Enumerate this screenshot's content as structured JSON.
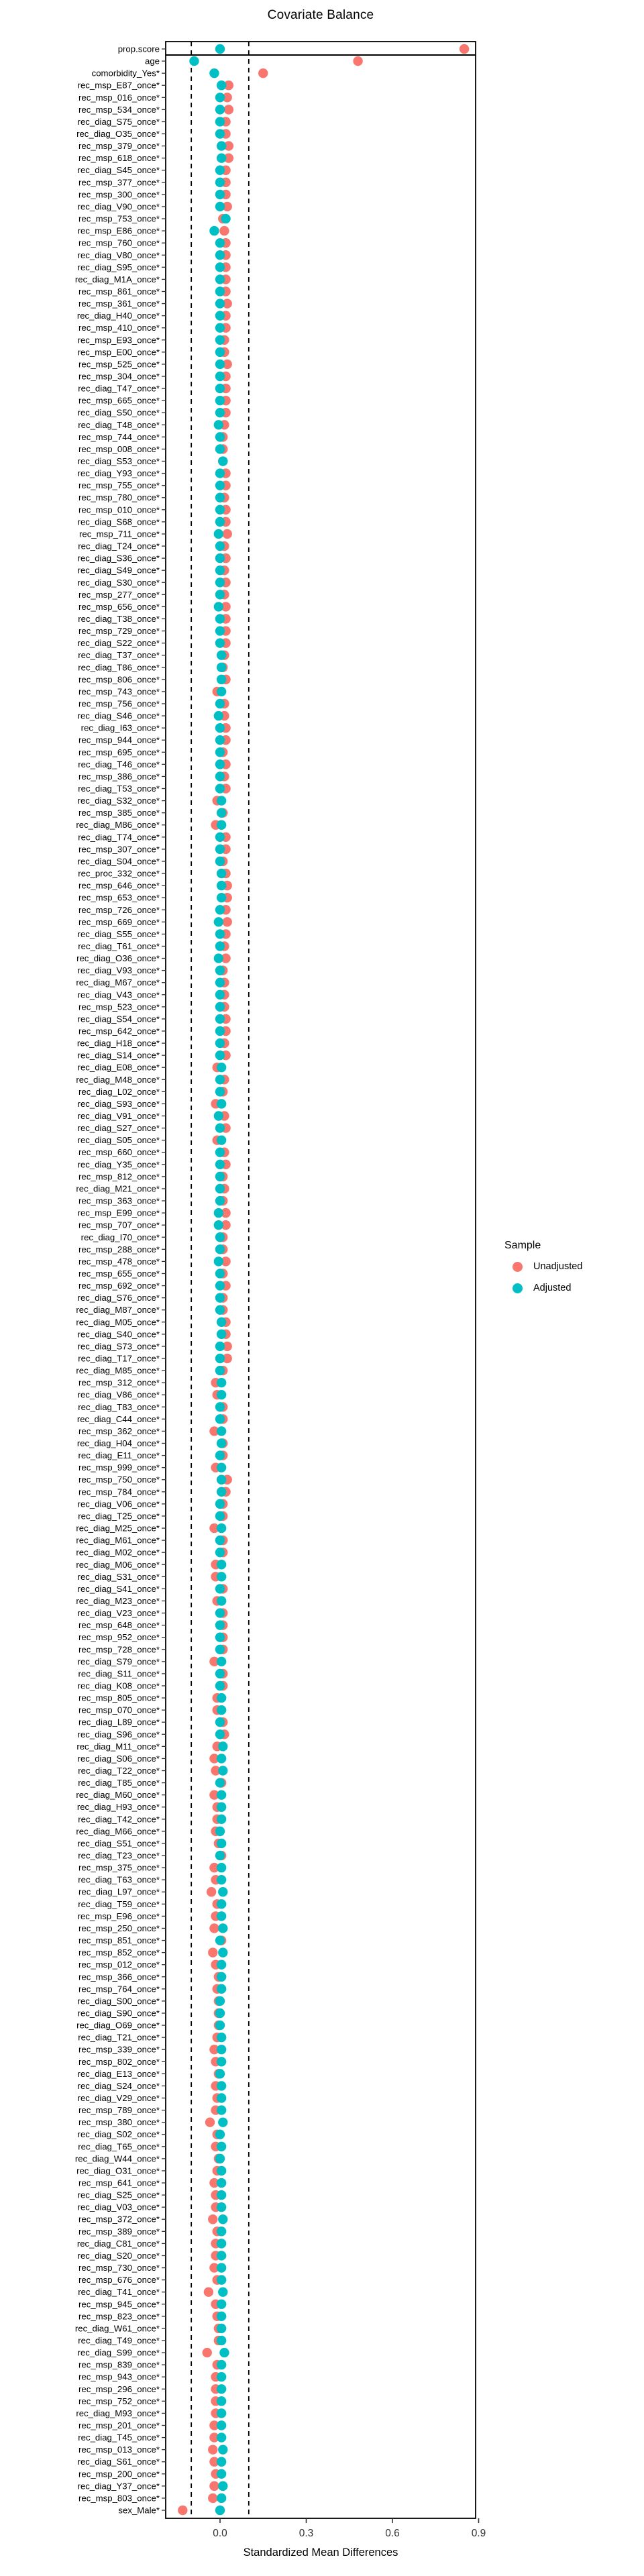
{
  "chart_data": {
    "type": "scatter",
    "title": "Covariate Balance",
    "xlabel": "Standardized Mean Differences",
    "x_axis": {
      "min": -0.19,
      "max": 0.9,
      "ticks": [
        0.0,
        0.3,
        0.6,
        0.9
      ],
      "tick_labels": [
        "0.0",
        "0.3",
        "0.6",
        "0.9"
      ]
    },
    "threshold_lines": [
      -0.1,
      0.1
    ],
    "separator_after_row": "prop.score",
    "grid": false,
    "legend": {
      "title": "Sample",
      "position": "right-middle",
      "items": [
        {
          "label": "Unadjusted",
          "color": "#F8766D"
        },
        {
          "label": "Adjusted",
          "color": "#00BFC4"
        }
      ]
    },
    "colors": {
      "unadjusted": "#F8766D",
      "adjusted": "#00BFC4"
    },
    "series_order_note": "rows listed top to bottom; values are [label, unadjusted SMD, adjusted SMD]",
    "rows": [
      [
        "prop.score",
        0.85,
        0.0
      ],
      [
        "age",
        0.48,
        -0.09
      ],
      [
        "comorbidity_Yes*",
        0.15,
        -0.02
      ],
      [
        "rec_msp_E87_once*",
        0.03,
        0.005
      ],
      [
        "rec_msp_016_once*",
        0.025,
        0.0
      ],
      [
        "rec_msp_534_once*",
        0.03,
        0.0
      ],
      [
        "rec_diag_S75_once*",
        0.02,
        0.0
      ],
      [
        "rec_diag_O35_once*",
        0.02,
        0.0
      ],
      [
        "rec_msp_379_once*",
        0.03,
        0.005
      ],
      [
        "rec_msp_618_once*",
        0.03,
        0.005
      ],
      [
        "rec_diag_S45_once*",
        0.02,
        0.0
      ],
      [
        "rec_msp_377_once*",
        0.02,
        0.0
      ],
      [
        "rec_msp_300_once*",
        0.02,
        0.0
      ],
      [
        "rec_diag_V90_once*",
        0.025,
        0.0
      ],
      [
        "rec_msp_753_once*",
        0.01,
        0.02
      ],
      [
        "rec_msp_E86_once*",
        0.015,
        -0.02
      ],
      [
        "rec_msp_760_once*",
        0.02,
        0.0
      ],
      [
        "rec_diag_V80_once*",
        0.02,
        0.0
      ],
      [
        "rec_diag_S95_once*",
        0.02,
        0.0
      ],
      [
        "rec_diag_M1A_once*",
        0.02,
        0.0
      ],
      [
        "rec_msp_861_once*",
        0.02,
        0.0
      ],
      [
        "rec_msp_361_once*",
        0.025,
        0.0
      ],
      [
        "rec_diag_H40_once*",
        0.02,
        0.0
      ],
      [
        "rec_msp_410_once*",
        0.02,
        0.0
      ],
      [
        "rec_msp_E93_once*",
        0.015,
        0.0
      ],
      [
        "rec_msp_E00_once*",
        0.015,
        0.0
      ],
      [
        "rec_msp_525_once*",
        0.025,
        0.0
      ],
      [
        "rec_msp_304_once*",
        0.02,
        0.0
      ],
      [
        "rec_diag_T47_once*",
        0.02,
        0.0
      ],
      [
        "rec_msp_665_once*",
        0.02,
        0.0
      ],
      [
        "rec_diag_S50_once*",
        0.02,
        0.0
      ],
      [
        "rec_diag_T48_once*",
        0.015,
        -0.005
      ],
      [
        "rec_msp_744_once*",
        0.01,
        0.0
      ],
      [
        "rec_msp_008_once*",
        0.01,
        0.0
      ],
      [
        "rec_diag_S53_once*",
        0.01,
        0.01
      ],
      [
        "rec_diag_Y93_once*",
        0.02,
        0.0
      ],
      [
        "rec_msp_755_once*",
        0.02,
        0.0
      ],
      [
        "rec_msp_780_once*",
        0.015,
        0.0
      ],
      [
        "rec_msp_010_once*",
        0.02,
        0.0
      ],
      [
        "rec_diag_S68_once*",
        0.02,
        0.0
      ],
      [
        "rec_msp_711_once*",
        0.025,
        -0.005
      ],
      [
        "rec_diag_T24_once*",
        0.015,
        0.0
      ],
      [
        "rec_diag_S36_once*",
        0.02,
        0.0
      ],
      [
        "rec_diag_S49_once*",
        0.015,
        0.0
      ],
      [
        "rec_diag_S30_once*",
        0.02,
        0.0
      ],
      [
        "rec_msp_277_once*",
        0.015,
        0.0
      ],
      [
        "rec_msp_656_once*",
        0.02,
        -0.005
      ],
      [
        "rec_diag_T38_once*",
        0.02,
        0.0
      ],
      [
        "rec_msp_729_once*",
        0.02,
        0.0
      ],
      [
        "rec_diag_S22_once*",
        0.02,
        0.0
      ],
      [
        "rec_diag_T37_once*",
        0.015,
        0.005
      ],
      [
        "rec_diag_T86_once*",
        0.01,
        0.005
      ],
      [
        "rec_msp_806_once*",
        0.02,
        0.005
      ],
      [
        "rec_msp_743_once*",
        -0.01,
        0.005
      ],
      [
        "rec_msp_756_once*",
        0.015,
        0.0
      ],
      [
        "rec_diag_S46_once*",
        0.015,
        -0.005
      ],
      [
        "rec_diag_I63_once*",
        0.02,
        0.0
      ],
      [
        "rec_msp_944_once*",
        0.02,
        0.0
      ],
      [
        "rec_msp_695_once*",
        0.01,
        0.0
      ],
      [
        "rec_diag_T46_once*",
        0.02,
        0.0
      ],
      [
        "rec_msp_386_once*",
        0.015,
        0.0
      ],
      [
        "rec_diag_T53_once*",
        0.02,
        0.0
      ],
      [
        "rec_diag_S32_once*",
        -0.01,
        0.005
      ],
      [
        "rec_msp_385_once*",
        0.01,
        0.005
      ],
      [
        "rec_diag_M86_once*",
        -0.015,
        0.005
      ],
      [
        "rec_diag_T74_once*",
        0.02,
        0.0
      ],
      [
        "rec_msp_307_once*",
        0.02,
        0.0
      ],
      [
        "rec_diag_S04_once*",
        0.01,
        0.0
      ],
      [
        "rec_proc_332_once*",
        0.02,
        0.005
      ],
      [
        "rec_msp_646_once*",
        0.025,
        0.005
      ],
      [
        "rec_msp_653_once*",
        0.025,
        0.005
      ],
      [
        "rec_msp_726_once*",
        0.02,
        0.0
      ],
      [
        "rec_msp_669_once*",
        0.025,
        -0.005
      ],
      [
        "rec_diag_S55_once*",
        0.02,
        0.0
      ],
      [
        "rec_diag_T61_once*",
        0.015,
        0.0
      ],
      [
        "rec_diag_O36_once*",
        0.02,
        -0.005
      ],
      [
        "rec_diag_V93_once*",
        0.01,
        0.0
      ],
      [
        "rec_diag_M67_once*",
        0.015,
        0.0
      ],
      [
        "rec_diag_V43_once*",
        0.015,
        0.0
      ],
      [
        "rec_msp_523_once*",
        0.015,
        0.0
      ],
      [
        "rec_diag_S54_once*",
        0.02,
        0.0
      ],
      [
        "rec_msp_642_once*",
        0.02,
        0.0
      ],
      [
        "rec_diag_H18_once*",
        0.015,
        0.0
      ],
      [
        "rec_diag_S14_once*",
        0.02,
        0.0
      ],
      [
        "rec_diag_E08_once*",
        -0.01,
        0.005
      ],
      [
        "rec_diag_M48_once*",
        0.015,
        0.0
      ],
      [
        "rec_diag_L02_once*",
        0.01,
        0.0
      ],
      [
        "rec_diag_S93_once*",
        -0.015,
        0.005
      ],
      [
        "rec_diag_V91_once*",
        0.015,
        -0.005
      ],
      [
        "rec_diag_S27_once*",
        0.02,
        0.0
      ],
      [
        "rec_diag_S05_once*",
        -0.01,
        0.005
      ],
      [
        "rec_msp_660_once*",
        0.015,
        0.0
      ],
      [
        "rec_diag_Y35_once*",
        0.02,
        0.0
      ],
      [
        "rec_msp_812_once*",
        0.01,
        0.0
      ],
      [
        "rec_diag_M21_once*",
        0.015,
        0.0
      ],
      [
        "rec_msp_363_once*",
        0.01,
        0.0
      ],
      [
        "rec_msp_E99_once*",
        0.02,
        -0.005
      ],
      [
        "rec_msp_707_once*",
        0.02,
        -0.005
      ],
      [
        "rec_diag_I70_once*",
        0.01,
        0.0
      ],
      [
        "rec_msp_288_once*",
        0.01,
        0.0
      ],
      [
        "rec_msp_478_once*",
        0.02,
        -0.005
      ],
      [
        "rec_msp_655_once*",
        0.01,
        0.0
      ],
      [
        "rec_msp_692_once*",
        0.02,
        0.0
      ],
      [
        "rec_diag_S76_once*",
        0.01,
        0.0
      ],
      [
        "rec_diag_M87_once*",
        0.01,
        0.0
      ],
      [
        "rec_diag_M05_once*",
        0.02,
        0.005
      ],
      [
        "rec_diag_S40_once*",
        0.02,
        0.005
      ],
      [
        "rec_diag_S73_once*",
        0.025,
        0.0
      ],
      [
        "rec_diag_T17_once*",
        0.025,
        0.0
      ],
      [
        "rec_diag_M85_once*",
        0.01,
        0.0
      ],
      [
        "rec_msp_312_once*",
        -0.015,
        0.005
      ],
      [
        "rec_diag_V86_once*",
        -0.01,
        0.005
      ],
      [
        "rec_diag_T83_once*",
        0.01,
        0.0
      ],
      [
        "rec_diag_C44_once*",
        0.01,
        0.0
      ],
      [
        "rec_msp_362_once*",
        -0.02,
        0.005
      ],
      [
        "rec_diag_H04_once*",
        0.01,
        0.005
      ],
      [
        "rec_diag_E11_once*",
        0.01,
        0.0
      ],
      [
        "rec_msp_999_once*",
        -0.015,
        0.005
      ],
      [
        "rec_msp_750_once*",
        0.025,
        0.005
      ],
      [
        "rec_msp_784_once*",
        0.02,
        0.005
      ],
      [
        "rec_diag_V06_once*",
        0.01,
        0.0
      ],
      [
        "rec_diag_T25_once*",
        0.01,
        0.0
      ],
      [
        "rec_diag_M25_once*",
        -0.02,
        0.005
      ],
      [
        "rec_diag_M61_once*",
        0.01,
        0.0
      ],
      [
        "rec_diag_M02_once*",
        0.01,
        0.0
      ],
      [
        "rec_diag_M06_once*",
        -0.015,
        0.005
      ],
      [
        "rec_diag_S31_once*",
        -0.015,
        0.005
      ],
      [
        "rec_diag_S41_once*",
        0.01,
        0.0
      ],
      [
        "rec_diag_M23_once*",
        -0.01,
        0.005
      ],
      [
        "rec_diag_V23_once*",
        0.01,
        0.0
      ],
      [
        "rec_msp_648_once*",
        0.01,
        0.0
      ],
      [
        "rec_msp_952_once*",
        0.01,
        0.0
      ],
      [
        "rec_msp_728_once*",
        0.01,
        0.0
      ],
      [
        "rec_diag_S79_once*",
        -0.02,
        0.005
      ],
      [
        "rec_diag_S11_once*",
        0.01,
        0.0
      ],
      [
        "rec_diag_K08_once*",
        0.01,
        0.0
      ],
      [
        "rec_msp_805_once*",
        -0.01,
        0.005
      ],
      [
        "rec_msp_070_once*",
        -0.01,
        0.005
      ],
      [
        "rec_diag_L89_once*",
        0.01,
        0.0
      ],
      [
        "rec_diag_S96_once*",
        0.015,
        0.0
      ],
      [
        "rec_diag_M11_once*",
        -0.01,
        0.01
      ],
      [
        "rec_diag_S06_once*",
        -0.02,
        0.005
      ],
      [
        "rec_diag_T22_once*",
        -0.015,
        0.01
      ],
      [
        "rec_diag_T85_once*",
        0.005,
        0.0
      ],
      [
        "rec_diag_M60_once*",
        -0.02,
        0.005
      ],
      [
        "rec_diag_H93_once*",
        -0.01,
        0.005
      ],
      [
        "rec_diag_T42_once*",
        -0.01,
        0.005
      ],
      [
        "rec_diag_M66_once*",
        -0.015,
        0.0
      ],
      [
        "rec_diag_S51_once*",
        -0.005,
        0.005
      ],
      [
        "rec_diag_T23_once*",
        0.005,
        0.0
      ],
      [
        "rec_msp_375_once*",
        -0.02,
        0.005
      ],
      [
        "rec_diag_T63_once*",
        -0.015,
        0.005
      ],
      [
        "rec_diag_L97_once*",
        -0.03,
        0.01
      ],
      [
        "rec_diag_T59_once*",
        -0.01,
        0.005
      ],
      [
        "rec_msp_E96_once*",
        -0.015,
        0.005
      ],
      [
        "rec_msp_250_once*",
        -0.02,
        0.01
      ],
      [
        "rec_msp_851_once*",
        0.005,
        0.0
      ],
      [
        "rec_msp_852_once*",
        -0.025,
        0.01
      ],
      [
        "rec_msp_012_once*",
        -0.015,
        0.005
      ],
      [
        "rec_msp_366_once*",
        -0.005,
        0.005
      ],
      [
        "rec_msp_764_once*",
        -0.01,
        0.005
      ],
      [
        "rec_diag_S00_once*",
        -0.005,
        0.0
      ],
      [
        "rec_diag_S90_once*",
        -0.005,
        0.0
      ],
      [
        "rec_diag_O69_once*",
        -0.005,
        0.0
      ],
      [
        "rec_diag_T21_once*",
        -0.01,
        0.005
      ],
      [
        "rec_msp_339_once*",
        -0.02,
        0.005
      ],
      [
        "rec_msp_802_once*",
        -0.015,
        0.005
      ],
      [
        "rec_diag_E13_once*",
        -0.005,
        0.0
      ],
      [
        "rec_diag_S24_once*",
        -0.015,
        0.005
      ],
      [
        "rec_diag_V29_once*",
        -0.01,
        0.005
      ],
      [
        "rec_msp_789_once*",
        -0.015,
        0.005
      ],
      [
        "rec_msp_380_once*",
        -0.035,
        0.01
      ],
      [
        "rec_diag_S02_once*",
        -0.01,
        0.0
      ],
      [
        "rec_diag_T65_once*",
        -0.015,
        0.005
      ],
      [
        "rec_diag_W44_once*",
        -0.005,
        0.0
      ],
      [
        "rec_diag_O31_once*",
        -0.01,
        0.005
      ],
      [
        "rec_msp_641_once*",
        -0.02,
        0.005
      ],
      [
        "rec_diag_S25_once*",
        -0.015,
        0.005
      ],
      [
        "rec_diag_V03_once*",
        -0.015,
        0.005
      ],
      [
        "rec_msp_372_once*",
        -0.025,
        0.01
      ],
      [
        "rec_msp_389_once*",
        -0.01,
        0.005
      ],
      [
        "rec_diag_C81_once*",
        -0.015,
        0.005
      ],
      [
        "rec_diag_S20_once*",
        -0.015,
        0.005
      ],
      [
        "rec_msp_730_once*",
        -0.02,
        0.005
      ],
      [
        "rec_msp_676_once*",
        -0.01,
        0.005
      ],
      [
        "rec_diag_T41_once*",
        -0.04,
        0.01
      ],
      [
        "rec_msp_945_once*",
        -0.015,
        0.005
      ],
      [
        "rec_msp_823_once*",
        -0.01,
        0.005
      ],
      [
        "rec_diag_W61_once*",
        -0.005,
        0.005
      ],
      [
        "rec_diag_T49_once*",
        -0.005,
        0.005
      ],
      [
        "rec_diag_S99_once*",
        -0.045,
        0.015
      ],
      [
        "rec_msp_839_once*",
        -0.01,
        0.005
      ],
      [
        "rec_msp_943_once*",
        -0.015,
        0.005
      ],
      [
        "rec_msp_296_once*",
        -0.015,
        0.005
      ],
      [
        "rec_msp_752_once*",
        -0.015,
        0.005
      ],
      [
        "rec_diag_M93_once*",
        -0.015,
        0.005
      ],
      [
        "rec_msp_201_once*",
        -0.02,
        0.005
      ],
      [
        "rec_diag_T45_once*",
        -0.02,
        0.005
      ],
      [
        "rec_msp_013_once*",
        -0.025,
        0.01
      ],
      [
        "rec_diag_S61_once*",
        -0.02,
        0.005
      ],
      [
        "rec_msp_200_once*",
        -0.015,
        0.005
      ],
      [
        "rec_diag_Y37_once*",
        -0.02,
        0.01
      ],
      [
        "rec_msp_803_once*",
        -0.025,
        0.005
      ],
      [
        "sex_Male*",
        -0.13,
        0.0
      ]
    ]
  }
}
